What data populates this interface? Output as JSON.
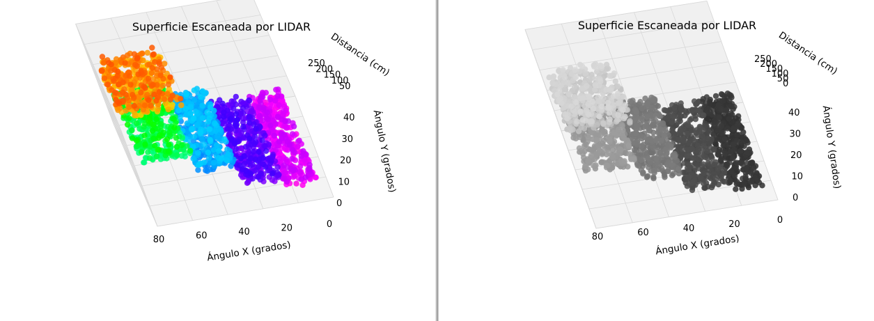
{
  "chart_data": [
    {
      "type": "scatter3d",
      "title": "Superficie Escaneada por LIDAR",
      "xlabel": "Ángulo X (grados)",
      "ylabel": "Ángulo Y (grados)",
      "zlabel": "Distancia (cm)",
      "x_ticks": [
        "0",
        "20",
        "40",
        "60",
        "80"
      ],
      "y_ticks": [
        "0",
        "10",
        "20",
        "30",
        "40"
      ],
      "z_ticks": [
        "50",
        "100",
        "150",
        "200",
        "250"
      ],
      "xlim": [
        -5,
        95
      ],
      "ylim": [
        -3,
        45
      ],
      "zlim": [
        25,
        270
      ],
      "colormap": "hsv",
      "colormap_stops": [
        "#ff0000",
        "#ff8000",
        "#ffff00",
        "#00ff00",
        "#00ffff",
        "#0080ff",
        "#0000ff",
        "#8000ff",
        "#ff00ff",
        "#ff0050"
      ],
      "grid": true
    },
    {
      "type": "scatter3d",
      "title": "Superficie Escaneada por LIDAR",
      "xlabel": "Ángulo X (grados)",
      "ylabel": "Ángulo Y (grados)",
      "zlabel": "Distancia (cm)",
      "x_ticks": [
        "0",
        "20",
        "40",
        "60",
        "80"
      ],
      "y_ticks": [
        "0",
        "10",
        "20",
        "30",
        "40"
      ],
      "z_ticks": [
        "0",
        "50",
        "100",
        "150",
        "200",
        "250"
      ],
      "xlim": [
        -5,
        95
      ],
      "ylim": [
        -3,
        45
      ],
      "zlim": [
        -5,
        270
      ],
      "colormap": "gray",
      "colormap_stops": [
        "#1a1a1a",
        "#3c3c3c",
        "#5a5a5a",
        "#7a7a7a",
        "#9c9c9c",
        "#c0c0c0",
        "#e6e6e6"
      ],
      "grid": true
    }
  ],
  "surface": {
    "walls": [
      {
        "x0": 0,
        "x1": 18,
        "y0": 2,
        "y1": 44,
        "z": 250
      },
      {
        "x0": 18,
        "x1": 40,
        "y0": 0,
        "y1": 38,
        "z": 220
      },
      {
        "x0": 40,
        "x1": 62,
        "y0": -2,
        "y1": 33,
        "z": 160
      },
      {
        "x0": 62,
        "x1": 90,
        "y0": -2,
        "y1": 30,
        "z": 120
      }
    ],
    "blob": {
      "x0": 56,
      "x1": 92,
      "y0": 8,
      "y1": 34,
      "z": 60
    }
  }
}
